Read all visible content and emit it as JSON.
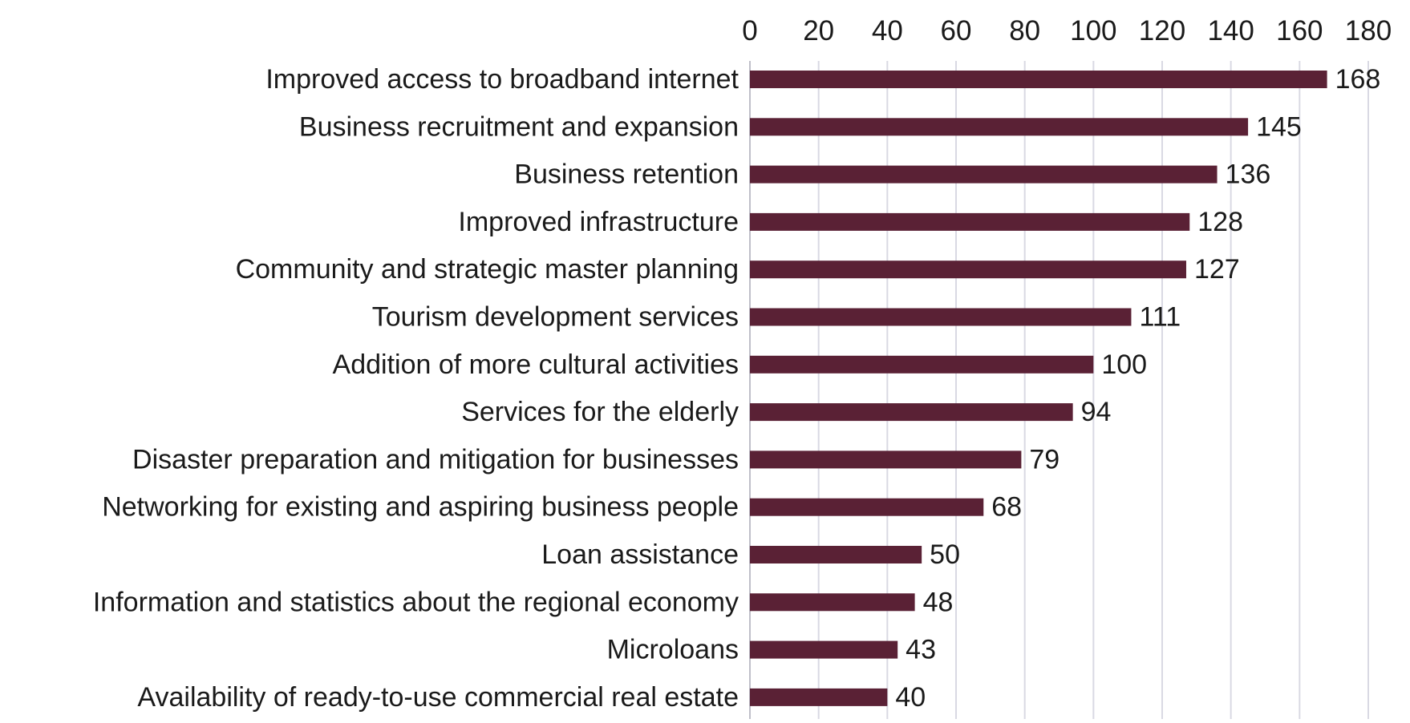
{
  "chart_data": {
    "type": "bar",
    "orientation": "horizontal",
    "title": "",
    "xlabel": "",
    "ylabel": "",
    "xlim": [
      0,
      180
    ],
    "x_ticks": [
      0,
      20,
      40,
      60,
      80,
      100,
      120,
      140,
      160,
      180
    ],
    "x_axis_position": "top",
    "grid": true,
    "legend": "none",
    "categories": [
      "Improved access to broadband internet",
      "Business recruitment and expansion",
      "Business retention",
      "Improved infrastructure",
      "Community and strategic master planning",
      "Tourism development services",
      "Addition of more cultural activities",
      "Services for the elderly",
      "Disaster preparation and mitigation for businesses",
      "Networking for existing and aspiring business people",
      "Loan assistance",
      "Information and statistics about the regional economy",
      "Microloans",
      "Availability of ready-to-use commercial real estate"
    ],
    "values": [
      168,
      145,
      136,
      128,
      127,
      111,
      100,
      94,
      79,
      68,
      50,
      48,
      43,
      40
    ],
    "bar_color": "#5a2135",
    "grid_color": "#d9d9e3"
  }
}
